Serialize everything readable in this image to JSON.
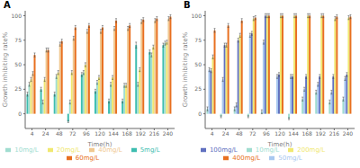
{
  "chart_data": [
    {
      "type": "bar",
      "title": "A",
      "x_label": "Time(h)",
      "y_label": "Growth inhibiting rate%",
      "categories": [
        "4",
        "24",
        "48",
        "72",
        "96",
        "120",
        "144",
        "168",
        "192",
        "216",
        "240"
      ],
      "series": [
        {
          "name": "5mg/L",
          "color": "#3dbdb0",
          "values": [
            20,
            25,
            20,
            -8,
            40,
            23,
            13,
            13,
            70,
            63,
            70
          ],
          "errors": [
            2,
            2,
            2,
            1,
            2,
            2,
            2,
            2,
            3,
            2,
            2
          ]
        },
        {
          "name": "10mg/L",
          "color": "#a0ddd0",
          "values": [
            30,
            12,
            38,
            12,
            42,
            32,
            30,
            29,
            30,
            60,
            72
          ],
          "errors": [
            2,
            2,
            2,
            2,
            2,
            2,
            2,
            2,
            2,
            2,
            2
          ]
        },
        {
          "name": "20mg/L",
          "color": "#f0e870",
          "values": [
            35,
            35,
            42,
            42,
            50,
            37,
            37,
            29,
            45,
            68,
            73
          ],
          "errors": [
            2,
            2,
            2,
            2,
            2,
            2,
            2,
            2,
            2,
            2,
            2
          ]
        },
        {
          "name": "40mg/L",
          "color": "#f0c890",
          "values": [
            41,
            65,
            71,
            77,
            84,
            84,
            87,
            87,
            94,
            95,
            97
          ],
          "errors": [
            2,
            2,
            2,
            2,
            2,
            2,
            2,
            2,
            2,
            2,
            2
          ]
        },
        {
          "name": "60mg/L",
          "color": "#e87020",
          "values": [
            60,
            65,
            74,
            88,
            90,
            88,
            95,
            90,
            96,
            97,
            99
          ],
          "errors": [
            2,
            2,
            2,
            2,
            2,
            2,
            2,
            2,
            2,
            2,
            2
          ]
        }
      ],
      "ylim": [
        -15,
        105
      ],
      "yticks": [
        0,
        25,
        50,
        75,
        100
      ],
      "grid": false,
      "legend": "bottom"
    },
    {
      "type": "bar",
      "title": "B",
      "x_label": "Time(h)",
      "y_label": "Growth inhibiting rate%",
      "categories": [
        "4",
        "24",
        "48",
        "72",
        "96",
        "120",
        "144",
        "168",
        "192",
        "216",
        "240"
      ],
      "series": [
        {
          "name": "10mg/L",
          "color": "#a0ddd0",
          "values": [
            5,
            -3,
            5,
            -3,
            2,
            0,
            -5,
            15,
            22,
            12,
            15
          ],
          "errors": [
            2,
            1,
            2,
            1,
            2,
            1,
            1,
            2,
            2,
            2,
            2
          ]
        },
        {
          "name": "50mg/L",
          "color": "#a8c8f0",
          "values": [
            45,
            35,
            9,
            80,
            73,
            38,
            38,
            25,
            30,
            22,
            36
          ],
          "errors": [
            2,
            2,
            2,
            2,
            2,
            2,
            2,
            2,
            2,
            2,
            2
          ]
        },
        {
          "name": "100mg/L",
          "color": "#6070c0",
          "values": [
            44,
            70,
            75,
            82,
            100,
            40,
            38,
            38,
            38,
            38,
            40
          ],
          "errors": [
            2,
            2,
            2,
            2,
            2,
            2,
            2,
            2,
            2,
            2,
            2
          ]
        },
        {
          "name": "200mg/L",
          "color": "#f0e870",
          "values": [
            58,
            70,
            80,
            97,
            100,
            100,
            100,
            100,
            100,
            97,
            98
          ],
          "errors": [
            2,
            2,
            2,
            2,
            2,
            2,
            2,
            2,
            2,
            2,
            2
          ]
        },
        {
          "name": "400mg/L",
          "color": "#e87020",
          "values": [
            85,
            90,
            95,
            98,
            100,
            100,
            100,
            100,
            100,
            99,
            99
          ],
          "errors": [
            2,
            2,
            2,
            2,
            2,
            2,
            2,
            2,
            2,
            2,
            2
          ]
        }
      ],
      "ylim": [
        -15,
        105
      ],
      "yticks": [
        0,
        25,
        50,
        75,
        100
      ],
      "grid": false,
      "legend": "bottom"
    }
  ]
}
